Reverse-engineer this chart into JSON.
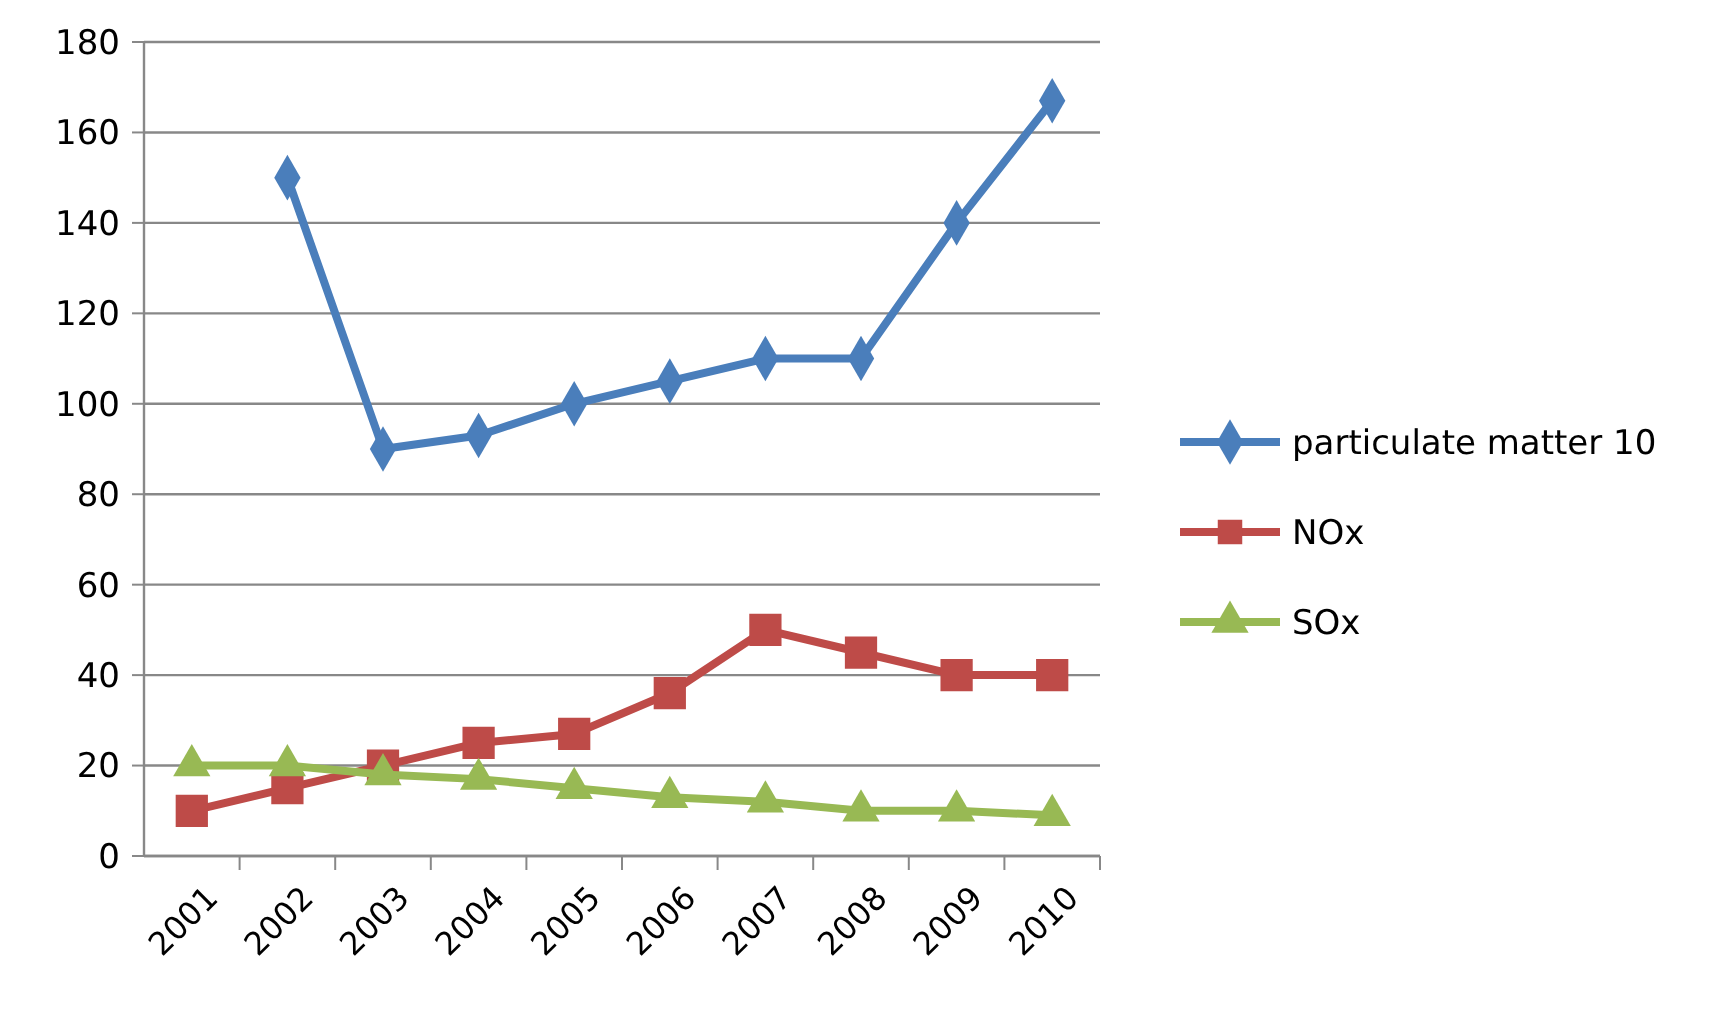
{
  "chart_data": {
    "type": "line",
    "categories": [
      "2001",
      "2002",
      "2003",
      "2004",
      "2005",
      "2006",
      "2007",
      "2008",
      "2009",
      "2010"
    ],
    "series": [
      {
        "name": "particulate matter 10",
        "color": "#4a7ebb",
        "marker": "diamond",
        "values": [
          null,
          150,
          90,
          93,
          100,
          105,
          110,
          110,
          140,
          167
        ]
      },
      {
        "name": "NOx",
        "color": "#be4b48",
        "marker": "square",
        "values": [
          10,
          15,
          20,
          25,
          27,
          36,
          50,
          45,
          40,
          40
        ]
      },
      {
        "name": "SOx",
        "color": "#98b954",
        "marker": "triangle",
        "values": [
          20,
          20,
          18,
          17,
          15,
          13,
          12,
          10,
          10,
          9
        ]
      }
    ],
    "ylim": [
      0,
      180
    ],
    "yticks": [
      0,
      20,
      40,
      60,
      80,
      100,
      120,
      140,
      160,
      180
    ],
    "grid": "y",
    "legend": "right",
    "line_style": "solid"
  }
}
